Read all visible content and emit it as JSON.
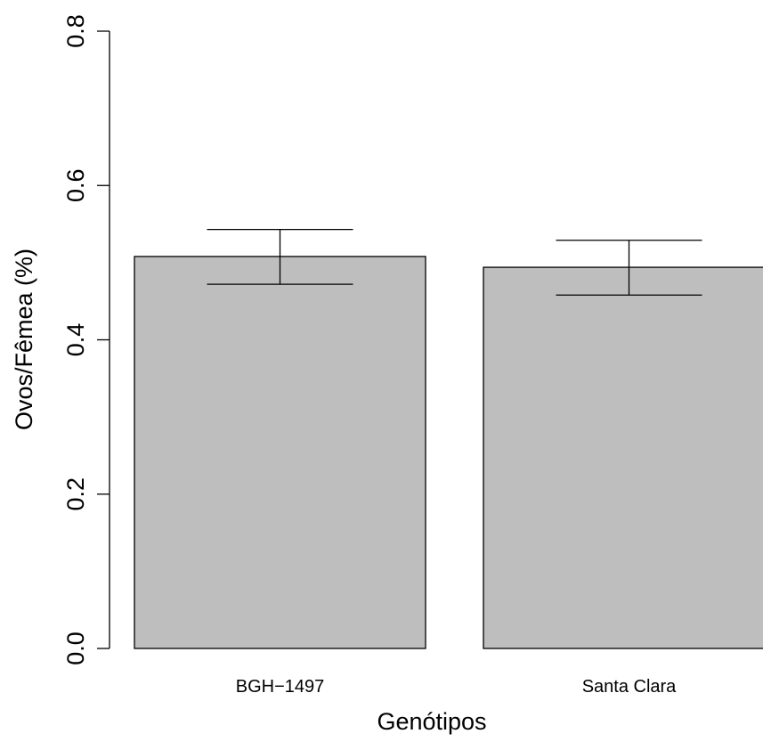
{
  "chart_data": {
    "type": "bar",
    "title": "",
    "xlabel": "Genótipos",
    "ylabel": "Ovos/Fêmea (%)",
    "categories": [
      "BGH−1497",
      "Santa Clara"
    ],
    "values": [
      0.508,
      0.494
    ],
    "error_bars": [
      {
        "lower": 0.472,
        "upper": 0.543
      },
      {
        "lower": 0.458,
        "upper": 0.529
      }
    ],
    "ylim": [
      0,
      0.8
    ],
    "yticks": [
      "0.0",
      "0.2",
      "0.4",
      "0.6",
      "0.8"
    ],
    "grid": false,
    "legend": "none",
    "colors": {
      "bar_fill": "#bebebe",
      "bar_stroke": "#000000",
      "axis": "#000000"
    }
  }
}
